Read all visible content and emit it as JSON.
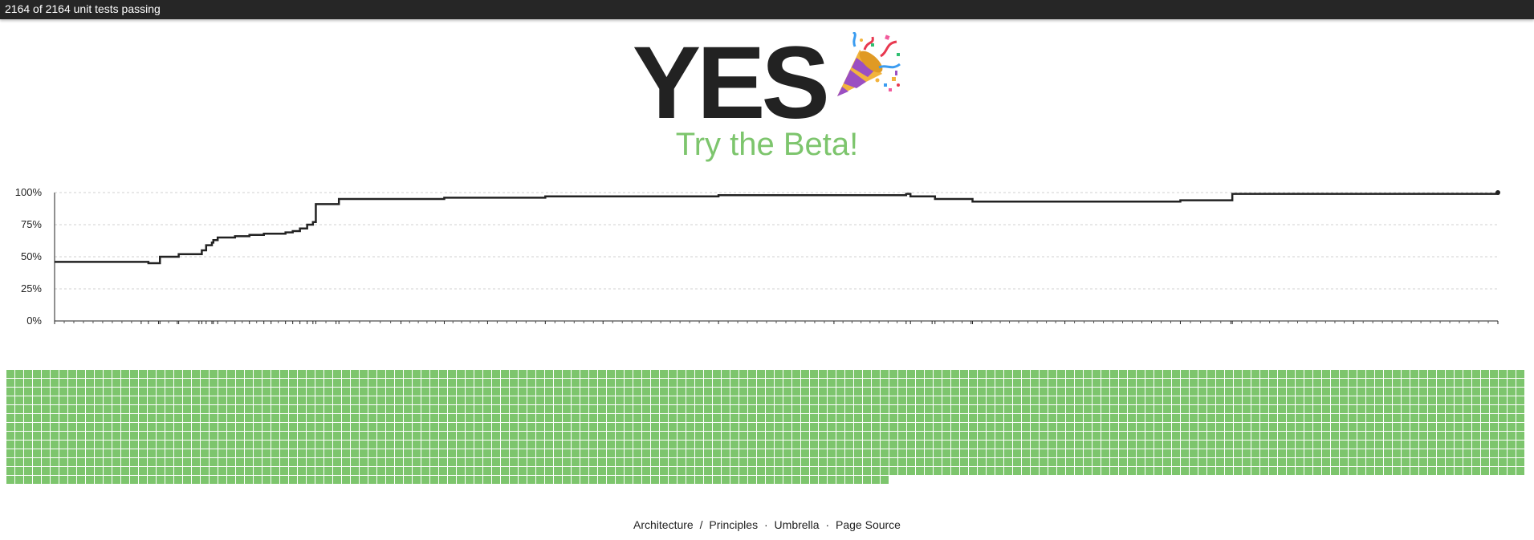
{
  "status_bar": {
    "text": "2164 of 2164 unit tests passing"
  },
  "headline": {
    "word": "YES",
    "emoji_icon": "party-popper-icon"
  },
  "beta_link": {
    "label": "Try the Beta!",
    "color": "#7dc56d"
  },
  "chart_data": {
    "type": "line",
    "title": "",
    "xlabel": "",
    "ylabel": "",
    "ylim": [
      0,
      100
    ],
    "yticks": [
      "0%",
      "25%",
      "50%",
      "75%",
      "100%"
    ],
    "grid": true,
    "series": [
      {
        "points": [
          [
            0,
            46
          ],
          [
            6,
            46
          ],
          [
            6.5,
            45
          ],
          [
            7.2,
            45
          ],
          [
            7.3,
            50
          ],
          [
            8.5,
            50
          ],
          [
            8.6,
            52
          ],
          [
            10,
            52
          ],
          [
            10.2,
            55
          ],
          [
            10.5,
            59
          ],
          [
            10.9,
            61
          ],
          [
            11.0,
            63
          ],
          [
            11.3,
            65
          ],
          [
            12.5,
            66
          ],
          [
            13.5,
            67
          ],
          [
            14.5,
            68
          ],
          [
            15,
            68
          ],
          [
            16,
            69
          ],
          [
            16.5,
            70
          ],
          [
            17.0,
            72
          ],
          [
            17.5,
            75
          ],
          [
            17.9,
            77
          ],
          [
            18.1,
            91
          ],
          [
            19.5,
            91
          ],
          [
            19.7,
            95
          ],
          [
            24,
            95
          ],
          [
            27,
            96
          ],
          [
            30,
            96
          ],
          [
            34,
            97
          ],
          [
            38,
            97
          ],
          [
            46,
            98
          ],
          [
            54,
            98
          ],
          [
            59,
            99
          ],
          [
            59.3,
            97
          ],
          [
            60.8,
            97
          ],
          [
            61,
            95
          ],
          [
            63.5,
            95
          ],
          [
            63.6,
            93
          ],
          [
            70,
            93
          ],
          [
            78,
            94
          ],
          [
            81.5,
            94
          ],
          [
            81.6,
            99
          ],
          [
            90,
            99
          ],
          [
            100,
            100
          ]
        ]
      }
    ]
  },
  "tests": {
    "total": 2164,
    "passed": 2164,
    "pass_color": "#7dc56d"
  },
  "footer": {
    "links": [
      "Architecture",
      "Principles",
      "Umbrella",
      "Page Source"
    ],
    "sep_slash": "/",
    "sep_dot": "·"
  }
}
